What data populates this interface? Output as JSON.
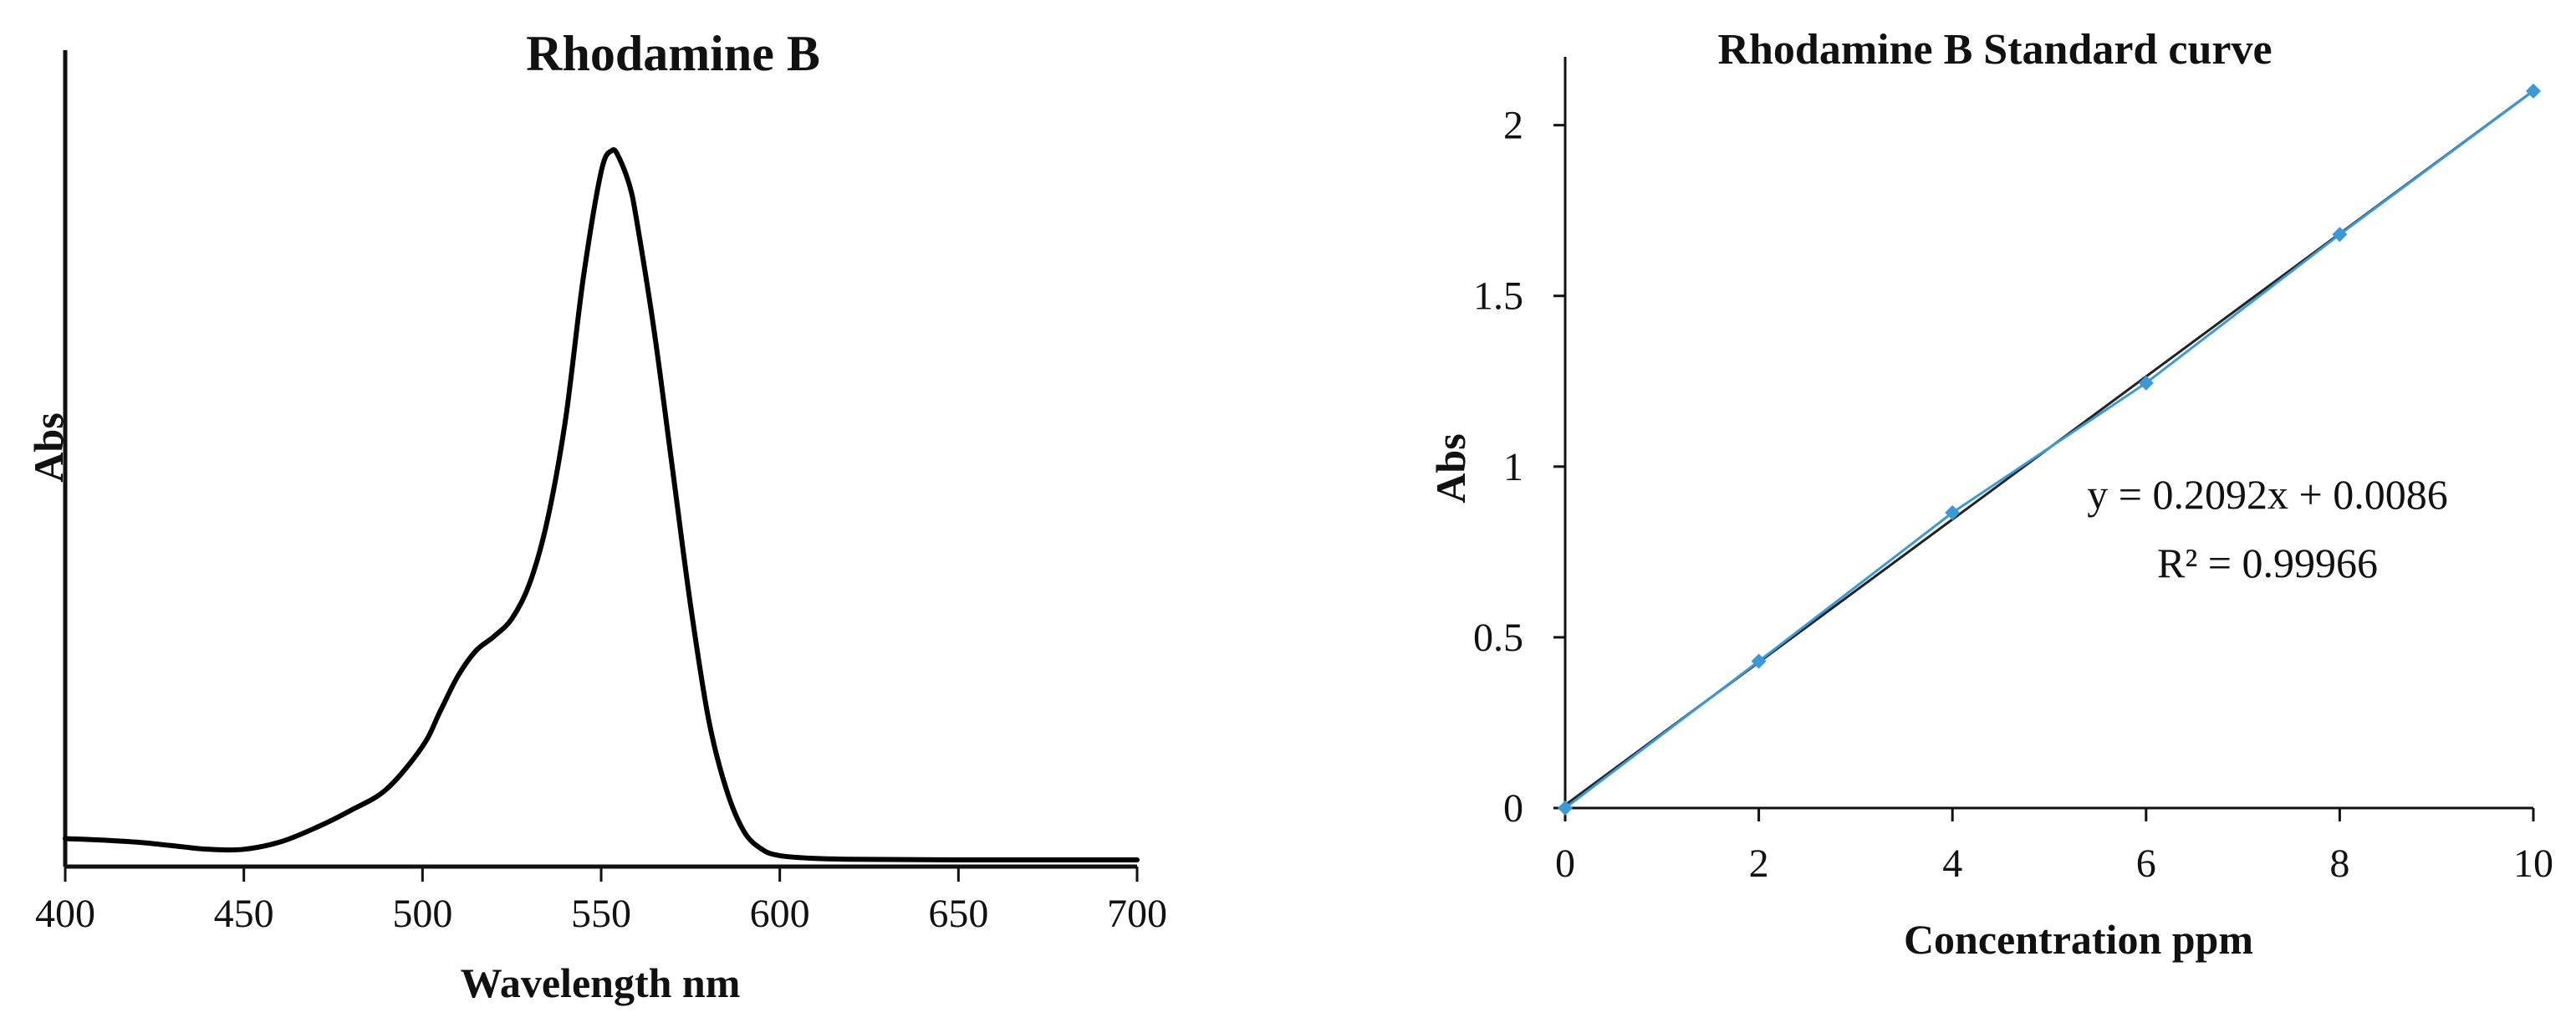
{
  "chart_data": [
    {
      "type": "line",
      "title": "Rhodamine B",
      "xlabel": "Wavelength nm",
      "ylabel": "Abs",
      "xlim": [
        400,
        700
      ],
      "ylim": [
        0,
        1
      ],
      "x_ticks": [
        "400",
        "450",
        "500",
        "550",
        "600",
        "650",
        "700"
      ],
      "y_ticks_shown": false,
      "grid": false,
      "series": [
        {
          "color": "#000000",
          "x": [
            400,
            410,
            420,
            430,
            440,
            450,
            460,
            470,
            480,
            490,
            500,
            505,
            510,
            515,
            520,
            525,
            530,
            535,
            540,
            545,
            550,
            553,
            555,
            558,
            560,
            565,
            570,
            575,
            580,
            585,
            590,
            595,
            600,
            610,
            620,
            650,
            700
          ],
          "y": [
            0.03,
            0.028,
            0.025,
            0.02,
            0.015,
            0.015,
            0.025,
            0.045,
            0.07,
            0.1,
            0.16,
            0.21,
            0.26,
            0.295,
            0.315,
            0.34,
            0.39,
            0.48,
            0.62,
            0.82,
            0.97,
            1.0,
            0.99,
            0.95,
            0.9,
            0.74,
            0.55,
            0.36,
            0.2,
            0.1,
            0.04,
            0.015,
            0.006,
            0.002,
            0.001,
            0.0,
            0.0
          ]
        }
      ]
    },
    {
      "type": "scatter",
      "title": "Rhodamine B Standard curve",
      "xlabel": "Concentration ppm",
      "ylabel": "Abs",
      "xlim": [
        0,
        10
      ],
      "ylim": [
        0,
        2.2
      ],
      "x_ticks": [
        "0",
        "2",
        "4",
        "6",
        "8",
        "10"
      ],
      "y_ticks": [
        "0",
        "0.5",
        "1",
        "1.5",
        "2"
      ],
      "grid": false,
      "series": [
        {
          "color": "#3a9ad9",
          "x": [
            0,
            2,
            4,
            6,
            8,
            10
          ],
          "y": [
            0.0,
            0.43,
            0.865,
            1.245,
            1.68,
            2.1
          ]
        }
      ],
      "trendline": {
        "color": "#222222",
        "slope": 0.2092,
        "intercept": 0.0086,
        "equation": "y = 0.2092x + 0.0086",
        "r_squared": "R² = 0.99966"
      }
    }
  ]
}
